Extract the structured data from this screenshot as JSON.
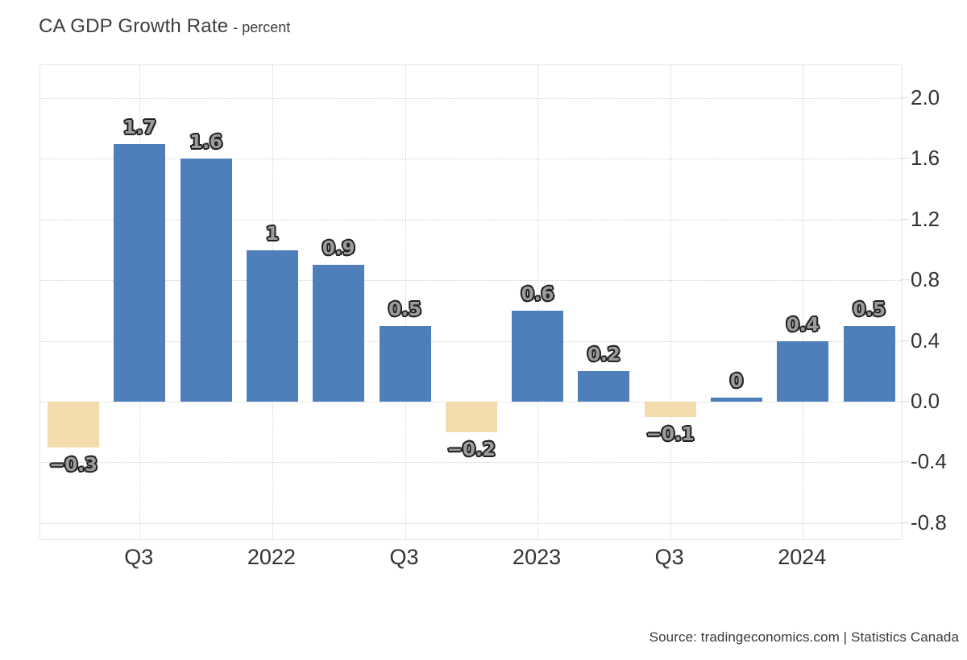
{
  "header": {
    "title": "CA GDP Growth Rate",
    "subtitle": "- percent"
  },
  "footer": {
    "source": "Source: tradingeconomics.com | Statistics Canada"
  },
  "chart_data": {
    "type": "bar",
    "title": "CA GDP Growth Rate",
    "ylabel": "percent",
    "values": [
      -0.3,
      1.7,
      1.6,
      1,
      0.9,
      0.5,
      -0.2,
      0.6,
      0.2,
      -0.1,
      0,
      0.4,
      0.5
    ],
    "bar_labels": [
      "−0.3",
      "1.7",
      "1.6",
      "1",
      "0.9",
      "0.5",
      "−0.2",
      "0.6",
      "0.2",
      "−0.1",
      "0",
      "0.4",
      "0.5"
    ],
    "x_tick_labels": [
      "Q3",
      "2022",
      "Q3",
      "2023",
      "Q3",
      "2024"
    ],
    "x_tick_bar_indices": [
      1,
      3,
      5,
      7,
      9,
      11
    ],
    "y_ticks": [
      2.0,
      1.6,
      1.2,
      0.8,
      0.4,
      0.0,
      -0.4,
      -0.8
    ],
    "y_tick_labels": [
      "2.0",
      "1.6",
      "1.2",
      "0.8",
      "0.4",
      "0.0",
      "-0.4",
      "-0.8"
    ],
    "ylim": [
      -0.91,
      2.22
    ],
    "grid": "dotted",
    "legend": "none",
    "colors": {
      "positive_bar": "#4e7fba",
      "negative_bar": "#f2dcae",
      "grid_line": "#d4d4d4",
      "axis_border": "#e7e7e7",
      "axis_tick": "#dddddd",
      "tick_text": "#333333",
      "value_label_fill": "#9c9c9c",
      "value_label_outline": "#222222",
      "title_text": "#3c3c3c"
    }
  }
}
